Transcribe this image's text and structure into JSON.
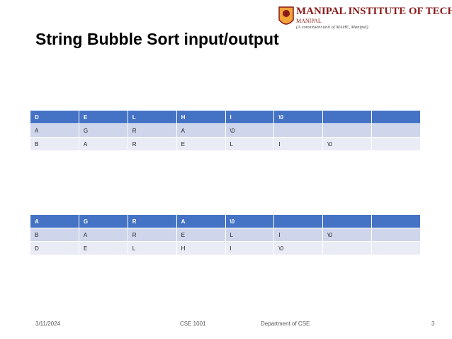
{
  "header": {
    "institute": "MANIPAL INSTITUTE OF TECHNOLOGY",
    "place": "MANIPAL",
    "tagline": "(A constituent unit of MAHE, Manipal)"
  },
  "title": "String Bubble Sort input/output",
  "tables": [
    {
      "rows": [
        [
          "D",
          "E",
          "L",
          "H",
          "I",
          "\\0"
        ],
        [
          "A",
          "G",
          "R",
          "A",
          "\\0"
        ],
        [
          "B",
          "A",
          "R",
          "E",
          "L",
          "I",
          "\\0"
        ]
      ]
    },
    {
      "rows": [
        [
          "A",
          "G",
          "R",
          "A",
          "\\0"
        ],
        [
          "B",
          "A",
          "R",
          "E",
          "L",
          "I",
          "\\0"
        ],
        [
          "D",
          "E",
          "L",
          "H",
          "I",
          "\\0"
        ]
      ]
    }
  ],
  "footer": {
    "date": "3/11/2024",
    "course": "CSE 1001",
    "department": "Department of CSE",
    "page": "3"
  }
}
